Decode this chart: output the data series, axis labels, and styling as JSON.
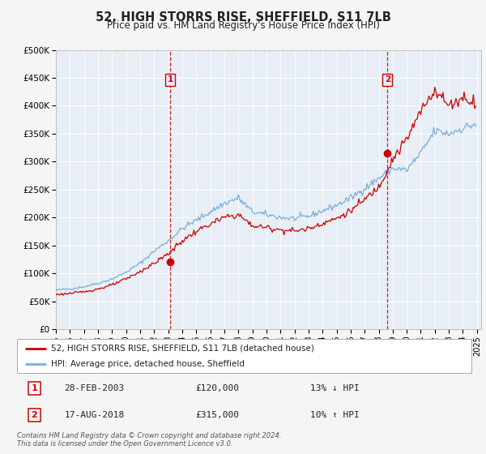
{
  "title": "52, HIGH STORRS RISE, SHEFFIELD, S11 7LB",
  "subtitle": "Price paid vs. HM Land Registry's House Price Index (HPI)",
  "ylim": [
    0,
    500000
  ],
  "yticks": [
    0,
    50000,
    100000,
    150000,
    200000,
    250000,
    300000,
    350000,
    400000,
    450000,
    500000
  ],
  "ytick_labels": [
    "£0",
    "£50K",
    "£100K",
    "£150K",
    "£200K",
    "£250K",
    "£300K",
    "£350K",
    "£400K",
    "£450K",
    "£500K"
  ],
  "background_color": "#f5f5f5",
  "plot_bg_color": "#e8eef5",
  "grid_color": "#ffffff",
  "red_line_color": "#cc0000",
  "blue_line_color": "#7aaddc",
  "marker1_x": 2003.15,
  "marker1_value": 120000,
  "marker1_label": "1",
  "marker1_text": "28-FEB-2003",
  "marker1_price": "£120,000",
  "marker1_hpi": "13% ↓ HPI",
  "marker2_x": 2018.62,
  "marker2_value": 315000,
  "marker2_label": "2",
  "marker2_text": "17-AUG-2018",
  "marker2_price": "£315,000",
  "marker2_hpi": "10% ↑ HPI",
  "legend_label_red": "52, HIGH STORRS RISE, SHEFFIELD, S11 7LB (detached house)",
  "legend_label_blue": "HPI: Average price, detached house, Sheffield",
  "footer_line1": "Contains HM Land Registry data © Crown copyright and database right 2024.",
  "footer_line2": "This data is licensed under the Open Government Licence v3.0."
}
